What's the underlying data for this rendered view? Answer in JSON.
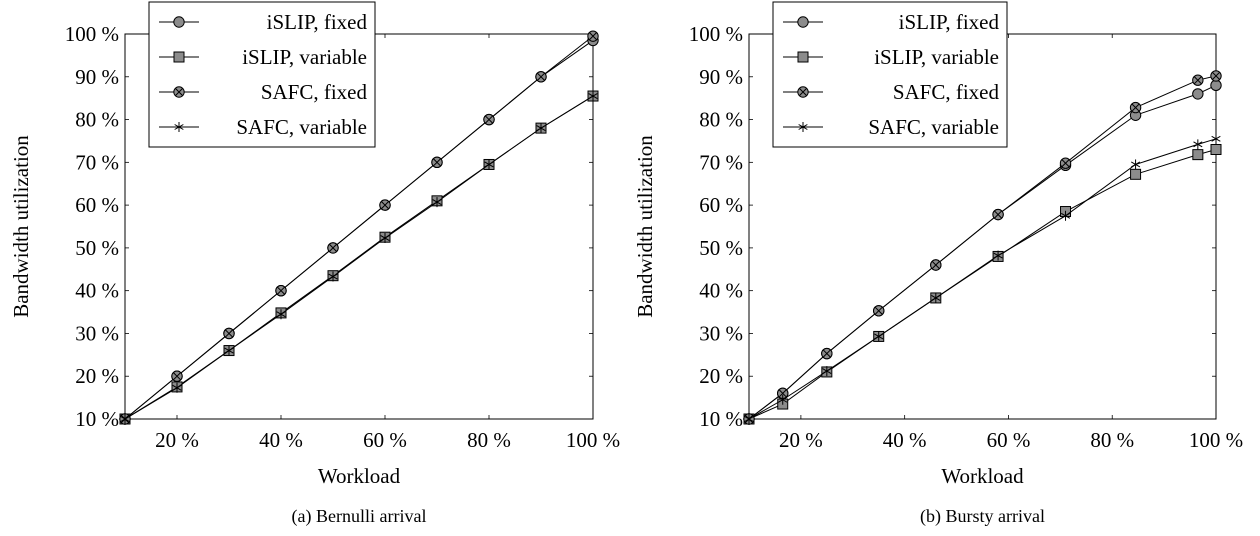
{
  "chart_data": [
    {
      "type": "line",
      "caption": "(a) Bernulli arrival",
      "xlabel": "Workload",
      "ylabel": "Bandwidth utilization",
      "xlim": [
        10,
        100
      ],
      "ylim": [
        10,
        100
      ],
      "xticks": [
        20,
        40,
        60,
        80,
        100
      ],
      "xtick_labels": [
        "20 %",
        "40 %",
        "60 %",
        "80 %",
        "100 %"
      ],
      "yticks": [
        10,
        20,
        30,
        40,
        50,
        60,
        70,
        80,
        90,
        100
      ],
      "ytick_labels": [
        "10 %",
        "20 %",
        "30 %",
        "40 %",
        "50 %",
        "60 %",
        "70 %",
        "80 %",
        "90 %",
        "100 %"
      ],
      "legend_position": "top-left",
      "grid": false,
      "series": [
        {
          "name": "iSLIP, fixed",
          "marker": "circle",
          "fill": "#8c8c8c",
          "x": [
            10,
            20,
            30,
            40,
            50,
            60,
            70,
            80,
            90,
            100
          ],
          "y": [
            10,
            20,
            30,
            40,
            50,
            60,
            70,
            80,
            90,
            98.5
          ]
        },
        {
          "name": "iSLIP, variable",
          "marker": "square",
          "fill": "#8c8c8c",
          "x": [
            10,
            20,
            30,
            40,
            50,
            60,
            70,
            80,
            90,
            100
          ],
          "y": [
            10,
            17.5,
            26,
            34.8,
            43.5,
            52.5,
            61,
            69.5,
            78,
            85.5
          ]
        },
        {
          "name": "SAFC, fixed",
          "marker": "circle-x",
          "fill": "#8c8c8c",
          "x": [
            10,
            20,
            30,
            40,
            50,
            60,
            70,
            80,
            90,
            100
          ],
          "y": [
            10,
            20,
            30,
            40,
            50,
            60,
            70,
            80,
            90,
            99.5
          ]
        },
        {
          "name": "SAFC, variable",
          "marker": "star",
          "fill": "#000000",
          "x": [
            10,
            20,
            30,
            40,
            50,
            60,
            70,
            80,
            90,
            100
          ],
          "y": [
            10,
            17.3,
            26,
            34.5,
            43.3,
            52.3,
            60.7,
            69.5,
            78,
            85.5
          ]
        }
      ]
    },
    {
      "type": "line",
      "caption": "(b) Bursty arrival",
      "xlabel": "Workload",
      "ylabel": "Bandwidth utilization",
      "xlim": [
        10,
        100
      ],
      "ylim": [
        10,
        100
      ],
      "xticks": [
        20,
        40,
        60,
        80,
        100
      ],
      "xtick_labels": [
        "20 %",
        "40 %",
        "60 %",
        "80 %",
        "100 %"
      ],
      "yticks": [
        10,
        20,
        30,
        40,
        50,
        60,
        70,
        80,
        90,
        100
      ],
      "ytick_labels": [
        "10 %",
        "20 %",
        "30 %",
        "40 %",
        "50 %",
        "60 %",
        "70 %",
        "80 %",
        "90 %",
        "100 %"
      ],
      "legend_position": "top-left",
      "grid": false,
      "series": [
        {
          "name": "iSLIP, fixed",
          "marker": "circle",
          "fill": "#8c8c8c",
          "x": [
            10,
            16.5,
            25,
            35,
            46,
            58,
            71,
            84.5,
            96.5,
            100
          ],
          "y": [
            10,
            16,
            25.3,
            35.3,
            46,
            57.8,
            69.3,
            81,
            86,
            88
          ]
        },
        {
          "name": "iSLIP, variable",
          "marker": "square",
          "fill": "#8c8c8c",
          "x": [
            10,
            16.5,
            25,
            35,
            46,
            58,
            71,
            84.5,
            96.5,
            100
          ],
          "y": [
            10,
            13.5,
            21,
            29.3,
            38.3,
            48,
            58.5,
            67.2,
            71.8,
            73
          ]
        },
        {
          "name": "SAFC, fixed",
          "marker": "circle-x",
          "fill": "#8c8c8c",
          "x": [
            10,
            16.5,
            25,
            35,
            46,
            58,
            71,
            84.5,
            96.5,
            100
          ],
          "y": [
            10,
            16,
            25.3,
            35.3,
            46,
            57.8,
            69.8,
            82.8,
            89.2,
            90.2
          ]
        },
        {
          "name": "SAFC, variable",
          "marker": "star",
          "fill": "#000000",
          "x": [
            10,
            16.5,
            25,
            35,
            46,
            58,
            71,
            84.5,
            96.5,
            100
          ],
          "y": [
            10,
            14.5,
            21.2,
            29.3,
            38.3,
            48.2,
            57.5,
            69.5,
            74.2,
            75.5
          ]
        }
      ]
    }
  ]
}
